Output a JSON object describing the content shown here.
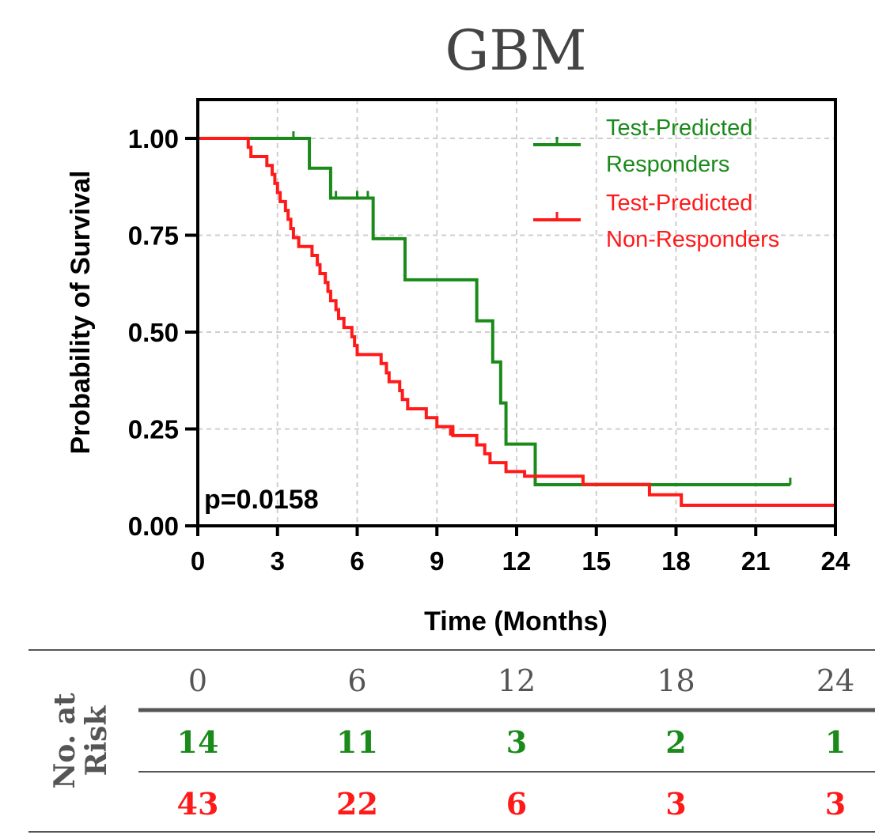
{
  "chart_data": {
    "type": "line",
    "subtype": "kaplan-meier",
    "title": "GBM",
    "xlabel": "Time (Months)",
    "ylabel": "Probability of Survival",
    "xlim": [
      0,
      24
    ],
    "ylim": [
      0,
      1.1
    ],
    "xticks": [
      "0",
      "3",
      "6",
      "9",
      "12",
      "15",
      "18",
      "21",
      "24"
    ],
    "yticks": [
      "0.00",
      "0.25",
      "0.50",
      "0.75",
      "1.00"
    ],
    "grid": true,
    "legend_position": "top-right",
    "annotation": "p=0.0158",
    "series": [
      {
        "name": "Test-Predicted Responders",
        "name_lines": [
          "Test-Predicted",
          "Responders"
        ],
        "color": "#1a8a1a",
        "steps": [
          [
            0,
            1.0
          ],
          [
            4.2,
            0.923
          ],
          [
            5.0,
            0.846
          ],
          [
            6.6,
            0.741
          ],
          [
            7.8,
            0.635
          ],
          [
            10.5,
            0.529
          ],
          [
            11.1,
            0.423
          ],
          [
            11.4,
            0.317
          ],
          [
            11.6,
            0.211
          ],
          [
            12.7,
            0.106
          ],
          [
            22.3,
            0.106
          ]
        ],
        "censored": [
          [
            3.6,
            1.0
          ],
          [
            5.2,
            0.846
          ],
          [
            6.0,
            0.846
          ],
          [
            6.4,
            0.846
          ],
          [
            22.3,
            0.106
          ]
        ]
      },
      {
        "name": "Test-Predicted Non-Responders",
        "name_lines": [
          "Test-Predicted",
          "Non-Responders"
        ],
        "color": "#ff1a1a",
        "steps": [
          [
            0,
            1.0
          ],
          [
            1.9,
            0.977
          ],
          [
            2.0,
            0.953
          ],
          [
            2.6,
            0.93
          ],
          [
            2.8,
            0.907
          ],
          [
            2.9,
            0.884
          ],
          [
            3.0,
            0.86
          ],
          [
            3.1,
            0.837
          ],
          [
            3.3,
            0.814
          ],
          [
            3.4,
            0.791
          ],
          [
            3.5,
            0.767
          ],
          [
            3.6,
            0.744
          ],
          [
            3.8,
            0.721
          ],
          [
            4.3,
            0.698
          ],
          [
            4.5,
            0.674
          ],
          [
            4.6,
            0.651
          ],
          [
            4.8,
            0.628
          ],
          [
            4.9,
            0.605
          ],
          [
            5.0,
            0.581
          ],
          [
            5.2,
            0.558
          ],
          [
            5.3,
            0.535
          ],
          [
            5.5,
            0.512
          ],
          [
            5.8,
            0.488
          ],
          [
            5.9,
            0.465
          ],
          [
            6.0,
            0.442
          ],
          [
            6.9,
            0.419
          ],
          [
            7.1,
            0.395
          ],
          [
            7.2,
            0.372
          ],
          [
            7.6,
            0.349
          ],
          [
            7.7,
            0.326
          ],
          [
            7.9,
            0.302
          ],
          [
            8.6,
            0.279
          ],
          [
            9.0,
            0.256
          ],
          [
            9.6,
            0.233
          ],
          [
            10.3,
            0.233
          ],
          [
            10.5,
            0.209
          ],
          [
            10.8,
            0.186
          ],
          [
            11.0,
            0.163
          ],
          [
            11.6,
            0.14
          ],
          [
            12.3,
            0.128
          ],
          [
            14.5,
            0.107
          ],
          [
            17.0,
            0.08
          ],
          [
            18.2,
            0.053
          ],
          [
            24,
            0.053
          ]
        ],
        "censored": [
          [
            9.5,
            0.233
          ],
          [
            24,
            0.053
          ]
        ]
      }
    ]
  },
  "risk_table": {
    "label_lines": [
      "No. at",
      "Risk"
    ],
    "times": [
      "0",
      "6",
      "12",
      "18",
      "24"
    ],
    "rows": [
      {
        "color": "#1a8a1a",
        "values": [
          "14",
          "11",
          "3",
          "2",
          "1"
        ]
      },
      {
        "color": "#ff1a1a",
        "values": [
          "43",
          "22",
          "6",
          "3",
          "3"
        ]
      }
    ]
  }
}
